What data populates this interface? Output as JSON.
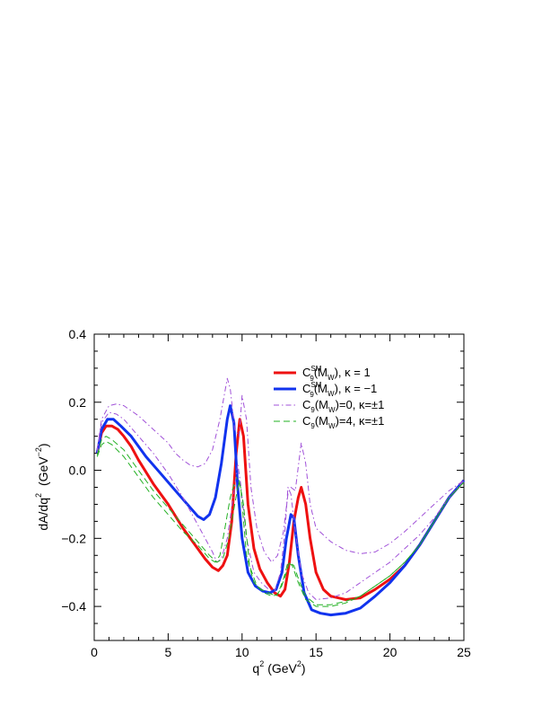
{
  "chart_data": {
    "type": "line",
    "xlabel": "q",
    "xlabel_sup": "2",
    "xlabel_unit": "(GeV",
    "xlabel_unit_sup": "2",
    "xlabel_close": ")",
    "ylabel": "dA/dq",
    "ylabel_sup": "2",
    "ylabel_unit": "(GeV",
    "ylabel_unit_sup": "−2",
    "ylabel_close": ")",
    "xlim": [
      0,
      25
    ],
    "ylim": [
      -0.5,
      0.4
    ],
    "xticks": [
      0,
      5,
      10,
      15,
      20,
      25
    ],
    "yticks": [
      -0.4,
      -0.2,
      0.0,
      0.2,
      0.4
    ],
    "ytick_labels": [
      "−0.4",
      "−0.2",
      "0.0",
      "0.2",
      "0.4"
    ],
    "grid": false,
    "legend_position": "top-right",
    "series": [
      {
        "legend": {
          "c": "C",
          "sub": "9",
          "sup": "SM",
          "rest": "(M",
          "rest_sub": "W",
          "tail": "), κ = 1"
        },
        "color": "#ee1111",
        "width": 3,
        "dash": "",
        "points": [
          [
            0.2,
            0.05
          ],
          [
            0.5,
            0.11
          ],
          [
            0.8,
            0.13
          ],
          [
            1.2,
            0.13
          ],
          [
            1.6,
            0.12
          ],
          [
            2,
            0.1
          ],
          [
            2.5,
            0.07
          ],
          [
            3,
            0.03
          ],
          [
            4,
            -0.04
          ],
          [
            5,
            -0.1
          ],
          [
            6,
            -0.17
          ],
          [
            7,
            -0.23
          ],
          [
            7.5,
            -0.26
          ],
          [
            8,
            -0.285
          ],
          [
            8.4,
            -0.295
          ],
          [
            8.7,
            -0.28
          ],
          [
            9,
            -0.25
          ],
          [
            9.3,
            -0.15
          ],
          [
            9.6,
            0.05
          ],
          [
            9.85,
            0.15
          ],
          [
            10.1,
            0.1
          ],
          [
            10.4,
            -0.1
          ],
          [
            10.8,
            -0.23
          ],
          [
            11.2,
            -0.29
          ],
          [
            11.7,
            -0.33
          ],
          [
            12.2,
            -0.36
          ],
          [
            12.6,
            -0.37
          ],
          [
            12.9,
            -0.35
          ],
          [
            13.2,
            -0.27
          ],
          [
            13.5,
            -0.15
          ],
          [
            13.8,
            -0.08
          ],
          [
            14,
            -0.05
          ],
          [
            14.3,
            -0.1
          ],
          [
            14.6,
            -0.2
          ],
          [
            15,
            -0.3
          ],
          [
            15.5,
            -0.35
          ],
          [
            16,
            -0.37
          ],
          [
            17,
            -0.38
          ],
          [
            18,
            -0.375
          ],
          [
            19,
            -0.35
          ],
          [
            20,
            -0.32
          ],
          [
            21,
            -0.28
          ],
          [
            22,
            -0.22
          ],
          [
            23,
            -0.15
          ],
          [
            24,
            -0.08
          ],
          [
            25,
            -0.03
          ]
        ]
      },
      {
        "legend": {
          "c": "C",
          "sub": "9",
          "sup": "SM",
          "rest": "(M",
          "rest_sub": "W",
          "tail": "), κ = −1"
        },
        "color": "#1133ee",
        "width": 3,
        "dash": "",
        "points": [
          [
            0.2,
            0.05
          ],
          [
            0.5,
            0.12
          ],
          [
            0.9,
            0.15
          ],
          [
            1.3,
            0.15
          ],
          [
            1.8,
            0.13
          ],
          [
            2.5,
            0.1
          ],
          [
            3.5,
            0.04
          ],
          [
            4.5,
            -0.01
          ],
          [
            5.5,
            -0.06
          ],
          [
            6.5,
            -0.11
          ],
          [
            7,
            -0.135
          ],
          [
            7.4,
            -0.145
          ],
          [
            7.8,
            -0.13
          ],
          [
            8.2,
            -0.08
          ],
          [
            8.6,
            0.02
          ],
          [
            9,
            0.15
          ],
          [
            9.2,
            0.19
          ],
          [
            9.45,
            0.14
          ],
          [
            9.7,
            -0.05
          ],
          [
            10,
            -0.2
          ],
          [
            10.4,
            -0.3
          ],
          [
            10.9,
            -0.34
          ],
          [
            11.4,
            -0.355
          ],
          [
            11.9,
            -0.36
          ],
          [
            12.3,
            -0.35
          ],
          [
            12.7,
            -0.3
          ],
          [
            13,
            -0.2
          ],
          [
            13.3,
            -0.13
          ],
          [
            13.5,
            -0.14
          ],
          [
            13.8,
            -0.25
          ],
          [
            14.2,
            -0.36
          ],
          [
            14.7,
            -0.41
          ],
          [
            15.3,
            -0.42
          ],
          [
            16,
            -0.425
          ],
          [
            17,
            -0.42
          ],
          [
            18,
            -0.405
          ],
          [
            19,
            -0.37
          ],
          [
            20,
            -0.33
          ],
          [
            21,
            -0.28
          ],
          [
            22,
            -0.22
          ],
          [
            23,
            -0.15
          ],
          [
            24,
            -0.08
          ],
          [
            25,
            -0.03
          ]
        ]
      },
      {
        "legend": {
          "c": "C",
          "sub": "9",
          "sup": "",
          "rest": "(M",
          "rest_sub": "W",
          "tail": ")=0, κ=±1"
        },
        "color": "#a050d8",
        "width": 1,
        "dash": "6,3,1.5,3",
        "points": [
          [
            0.2,
            0.06
          ],
          [
            0.5,
            0.15
          ],
          [
            1,
            0.19
          ],
          [
            1.5,
            0.195
          ],
          [
            2,
            0.19
          ],
          [
            3,
            0.16
          ],
          [
            4,
            0.12
          ],
          [
            5,
            0.08
          ],
          [
            5.5,
            0.05
          ],
          [
            6,
            0.03
          ],
          [
            6.5,
            0.015
          ],
          [
            7,
            0.01
          ],
          [
            7.5,
            0.02
          ],
          [
            8,
            0.06
          ],
          [
            8.5,
            0.15
          ],
          [
            9,
            0.27
          ],
          [
            9.2,
            0.24
          ],
          [
            9.5,
            0.12
          ],
          [
            9.8,
            0.1
          ],
          [
            10,
            0.22
          ],
          [
            10.3,
            0.15
          ],
          [
            10.6,
            -0.05
          ],
          [
            11,
            -0.17
          ],
          [
            11.5,
            -0.24
          ],
          [
            12,
            -0.27
          ],
          [
            12.4,
            -0.25
          ],
          [
            12.8,
            -0.18
          ],
          [
            13.1,
            -0.07
          ],
          [
            13.3,
            -0.05
          ],
          [
            13.6,
            -0.06
          ],
          [
            14,
            0.08
          ],
          [
            14.3,
            0.02
          ],
          [
            14.6,
            -0.1
          ],
          [
            15,
            -0.17
          ],
          [
            16,
            -0.21
          ],
          [
            17,
            -0.235
          ],
          [
            18,
            -0.245
          ],
          [
            19,
            -0.24
          ],
          [
            20,
            -0.215
          ],
          [
            21,
            -0.18
          ],
          [
            22,
            -0.14
          ],
          [
            23,
            -0.1
          ],
          [
            24,
            -0.06
          ],
          [
            25,
            -0.03
          ]
        ]
      },
      {
        "legend": {
          "c": "C",
          "sub": "9",
          "sup": "",
          "rest": "(M",
          "rest_sub": "W",
          "tail": ")=4, κ=±1"
        },
        "color": "#22b022",
        "width": 1,
        "dash": "7,4",
        "points": [
          [
            0.2,
            0.04
          ],
          [
            0.5,
            0.075
          ],
          [
            0.8,
            0.085
          ],
          [
            1.2,
            0.075
          ],
          [
            2,
            0.04
          ],
          [
            3,
            -0.02
          ],
          [
            4,
            -0.08
          ],
          [
            5,
            -0.13
          ],
          [
            6,
            -0.18
          ],
          [
            7,
            -0.22
          ],
          [
            7.8,
            -0.26
          ],
          [
            8.2,
            -0.27
          ],
          [
            8.5,
            -0.25
          ],
          [
            8.8,
            -0.18
          ],
          [
            9.2,
            -0.08
          ],
          [
            9.6,
            -0.02
          ],
          [
            9.9,
            -0.05
          ],
          [
            10.3,
            -0.25
          ],
          [
            10.8,
            -0.33
          ],
          [
            11.3,
            -0.35
          ],
          [
            11.8,
            -0.36
          ],
          [
            12.3,
            -0.37
          ],
          [
            12.6,
            -0.35
          ],
          [
            13,
            -0.3
          ],
          [
            13.2,
            -0.27
          ],
          [
            13.5,
            -0.28
          ],
          [
            13.9,
            -0.33
          ],
          [
            14.3,
            -0.37
          ],
          [
            15,
            -0.395
          ],
          [
            16,
            -0.395
          ],
          [
            17,
            -0.385
          ],
          [
            18,
            -0.37
          ],
          [
            19,
            -0.34
          ],
          [
            20,
            -0.31
          ],
          [
            21,
            -0.27
          ],
          [
            22,
            -0.22
          ],
          [
            23,
            -0.15
          ],
          [
            24,
            -0.08
          ],
          [
            25,
            -0.035
          ]
        ]
      },
      {
        "legend": null,
        "color": "#a050d8",
        "width": 1,
        "dash": "6,3,1.5,3",
        "points": [
          [
            0.2,
            0.05
          ],
          [
            0.5,
            0.14
          ],
          [
            1,
            0.17
          ],
          [
            1.5,
            0.165
          ],
          [
            2,
            0.15
          ],
          [
            3,
            0.1
          ],
          [
            4,
            0.05
          ],
          [
            5,
            -0.01
          ],
          [
            6,
            -0.08
          ],
          [
            7,
            -0.16
          ],
          [
            7.5,
            -0.2
          ],
          [
            8,
            -0.24
          ],
          [
            8.3,
            -0.27
          ],
          [
            8.6,
            -0.26
          ],
          [
            9,
            -0.2
          ],
          [
            9.4,
            -0.08
          ],
          [
            9.7,
            0.02
          ],
          [
            9.9,
            -0.04
          ],
          [
            10.3,
            -0.2
          ],
          [
            10.8,
            -0.3
          ],
          [
            11.3,
            -0.33
          ],
          [
            11.8,
            -0.35
          ],
          [
            12.2,
            -0.355
          ],
          [
            12.6,
            -0.3
          ],
          [
            12.9,
            -0.18
          ],
          [
            13.1,
            -0.05
          ],
          [
            13.3,
            -0.07
          ],
          [
            13.6,
            -0.18
          ],
          [
            14,
            -0.3
          ],
          [
            14.5,
            -0.36
          ],
          [
            15,
            -0.38
          ],
          [
            16,
            -0.375
          ],
          [
            17,
            -0.36
          ],
          [
            18,
            -0.33
          ],
          [
            19,
            -0.3
          ],
          [
            20,
            -0.27
          ],
          [
            21,
            -0.23
          ],
          [
            22,
            -0.19
          ],
          [
            23,
            -0.14
          ],
          [
            24,
            -0.08
          ],
          [
            25,
            -0.03
          ]
        ]
      },
      {
        "legend": null,
        "color": "#22b022",
        "width": 1,
        "dash": "7,4",
        "points": [
          [
            0.2,
            0.045
          ],
          [
            0.5,
            0.09
          ],
          [
            0.8,
            0.1
          ],
          [
            1.2,
            0.09
          ],
          [
            2,
            0.06
          ],
          [
            3,
            0.0
          ],
          [
            4,
            -0.06
          ],
          [
            5,
            -0.11
          ],
          [
            6,
            -0.16
          ],
          [
            7,
            -0.21
          ],
          [
            7.8,
            -0.25
          ],
          [
            8.3,
            -0.27
          ],
          [
            8.7,
            -0.26
          ],
          [
            9.1,
            -0.2
          ],
          [
            9.5,
            -0.1
          ],
          [
            9.8,
            -0.03
          ],
          [
            10.1,
            -0.1
          ],
          [
            10.5,
            -0.28
          ],
          [
            11,
            -0.34
          ],
          [
            11.5,
            -0.36
          ],
          [
            12,
            -0.37
          ],
          [
            12.4,
            -0.365
          ],
          [
            12.8,
            -0.32
          ],
          [
            13.1,
            -0.27
          ],
          [
            13.4,
            -0.28
          ],
          [
            13.8,
            -0.33
          ],
          [
            14.3,
            -0.38
          ],
          [
            15,
            -0.4
          ],
          [
            16,
            -0.4
          ],
          [
            17,
            -0.39
          ],
          [
            18,
            -0.37
          ],
          [
            19,
            -0.34
          ],
          [
            20,
            -0.31
          ],
          [
            21,
            -0.27
          ],
          [
            22,
            -0.22
          ],
          [
            23,
            -0.15
          ],
          [
            24,
            -0.08
          ],
          [
            25,
            -0.035
          ]
        ]
      }
    ]
  }
}
